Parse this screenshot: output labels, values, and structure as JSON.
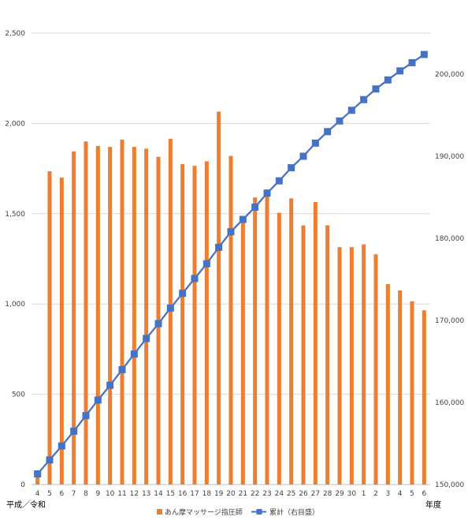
{
  "chart_data": {
    "type": "bar",
    "title": "",
    "x_tick_labels": [
      "4",
      "5",
      "6",
      "7",
      "8",
      "9",
      "10",
      "11",
      "12",
      "13",
      "14",
      "15",
      "16",
      "17",
      "18",
      "19",
      "20",
      "21",
      "22",
      "23",
      "24",
      "25",
      "26",
      "27",
      "28",
      "29",
      "30",
      "1",
      "2",
      "3",
      "4",
      "5",
      "6"
    ],
    "xlabel_left": "平成／令和",
    "xlabel_right": "年度",
    "y_left": {
      "min": 0,
      "max": 2500,
      "ticks": [
        "0",
        "500",
        "1,000",
        "1,500",
        "2,000",
        "2,500"
      ]
    },
    "y_right": {
      "min": 150000,
      "max": 205000,
      "ticks": [
        "150,000",
        "160,000",
        "170,000",
        "180,000",
        "190,000",
        "200,000"
      ]
    },
    "grid": true,
    "legend_position": "bottom",
    "series": [
      {
        "name": "あん摩マッサージ指圧師",
        "kind": "bar",
        "axis": "left",
        "color": "#ED7D31",
        "values": [
          40,
          1735,
          1700,
          1845,
          1900,
          1875,
          1870,
          1910,
          1870,
          1860,
          1815,
          1915,
          1775,
          1765,
          1790,
          2065,
          1820,
          1480,
          1590,
          1635,
          1505,
          1585,
          1435,
          1565,
          1435,
          1315,
          1315,
          1330,
          1275,
          1110,
          1075,
          1015,
          965
        ]
      },
      {
        "name": "累計（右目盛）",
        "kind": "line",
        "axis": "right",
        "color": "#4472C4",
        "values": [
          151300,
          153000,
          154700,
          156500,
          158400,
          160300,
          162100,
          164000,
          165900,
          167800,
          169600,
          171500,
          173300,
          175100,
          176900,
          178900,
          180800,
          182300,
          183800,
          185500,
          187000,
          188600,
          190000,
          191600,
          193000,
          194300,
          195600,
          196900,
          198200,
          199300,
          200400,
          201400,
          202400
        ]
      }
    ]
  }
}
